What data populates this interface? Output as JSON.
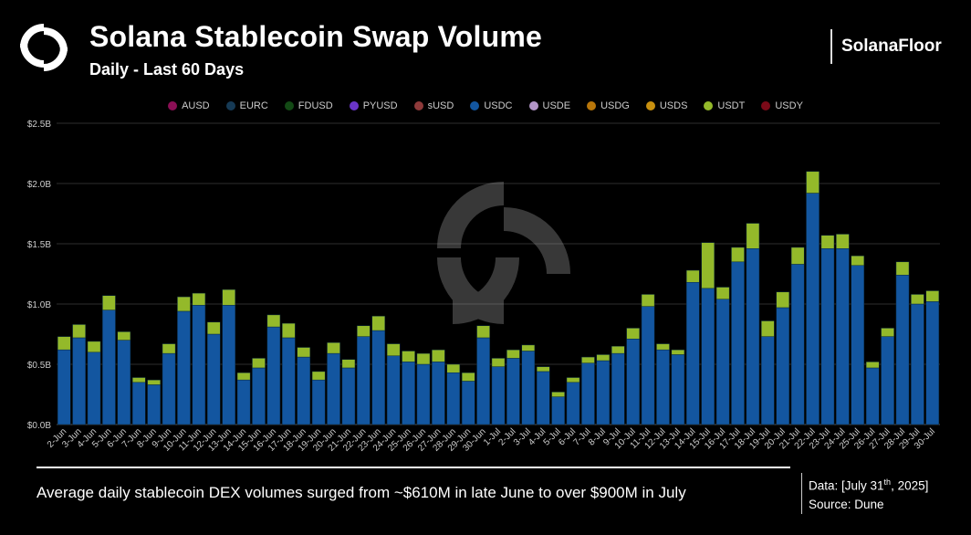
{
  "header": {
    "title": "Solana Stablecoin Swap Volume",
    "subtitle": "Daily - Last 60 Days",
    "brand": "SolanaFloor"
  },
  "footer": {
    "caption": "Average daily stablecoin DEX volumes surged from ~$610M in late June to over $900M in July",
    "data_prefix": "Data: [July 31",
    "data_sup": "th",
    "data_suffix": ", 2025]",
    "source": "Source: Dune"
  },
  "chart_data": {
    "type": "bar",
    "stacked": true,
    "title": "Solana Stablecoin Swap Volume",
    "subtitle": "Daily - Last 60 Days",
    "ylim": [
      0,
      2.5
    ],
    "yticks": [
      "$0.0B",
      "$0.5B",
      "$1.0B",
      "$1.5B",
      "$2.0B",
      "$2.5B"
    ],
    "ytick_values": [
      0,
      0.5,
      1.0,
      1.5,
      2.0,
      2.5
    ],
    "grid": true,
    "legend_position": "top",
    "legend": [
      {
        "name": "AUSD",
        "color": "#8b0f55"
      },
      {
        "name": "EURC",
        "color": "#163a55"
      },
      {
        "name": "FDUSD",
        "color": "#134a15"
      },
      {
        "name": "PYUSD",
        "color": "#6a35c8"
      },
      {
        "name": "sUSD",
        "color": "#8e3a3a"
      },
      {
        "name": "USDC",
        "color": "#1356a0"
      },
      {
        "name": "USDE",
        "color": "#b396c8"
      },
      {
        "name": "USDG",
        "color": "#b8760a"
      },
      {
        "name": "USDS",
        "color": "#c8900f"
      },
      {
        "name": "USDT",
        "color": "#94b92a"
      },
      {
        "name": "USDY",
        "color": "#7a0a18"
      }
    ],
    "categories": [
      "2-Jun",
      "3-Jun",
      "4-Jun",
      "5-Jun",
      "6-Jun",
      "7-Jun",
      "8-Jun",
      "9-Jun",
      "10-Jun",
      "11-Jun",
      "12-Jun",
      "13-Jun",
      "14-Jun",
      "15-Jun",
      "16-Jun",
      "17-Jun",
      "18-Jun",
      "19-Jun",
      "20-Jun",
      "21-Jun",
      "22-Jun",
      "23-Jun",
      "24-Jun",
      "25-Jun",
      "26-Jun",
      "27-Jun",
      "28-Jun",
      "29-Jun",
      "30-Jun",
      "1-Jul",
      "2-Jul",
      "3-Jul",
      "4-Jul",
      "5-Jul",
      "6-Jul",
      "7-Jul",
      "8-Jul",
      "9-Jul",
      "10-Jul",
      "11-Jul",
      "12-Jul",
      "13-Jul",
      "14-Jul",
      "15-Jul",
      "16-Jul",
      "17-Jul",
      "18-Jul",
      "19-Jul",
      "20-Jul",
      "21-Jul",
      "22-Jul",
      "23-Jul",
      "24-Jul",
      "25-Jul",
      "26-Jul",
      "27-Jul",
      "28-Jul",
      "29-Jul",
      "30-Jul"
    ],
    "unit": "B USD",
    "series": [
      {
        "name": "USDC",
        "color": "#1356a0",
        "values": [
          0.62,
          0.72,
          0.6,
          0.95,
          0.7,
          0.35,
          0.33,
          0.59,
          0.94,
          0.99,
          0.75,
          0.99,
          0.37,
          0.47,
          0.81,
          0.72,
          0.56,
          0.37,
          0.59,
          0.47,
          0.73,
          0.78,
          0.57,
          0.52,
          0.5,
          0.52,
          0.43,
          0.36,
          0.72,
          0.48,
          0.55,
          0.61,
          0.44,
          0.23,
          0.35,
          0.51,
          0.53,
          0.59,
          0.71,
          0.98,
          0.62,
          0.58,
          1.18,
          1.13,
          1.04,
          1.35,
          1.46,
          0.73,
          0.97,
          1.33,
          1.92,
          1.46,
          1.46,
          1.32,
          0.47,
          0.73,
          1.24,
          1.0,
          1.02
        ]
      },
      {
        "name": "USDT",
        "color": "#94b92a",
        "values": [
          0.11,
          0.11,
          0.09,
          0.12,
          0.07,
          0.04,
          0.04,
          0.08,
          0.12,
          0.1,
          0.1,
          0.13,
          0.06,
          0.08,
          0.1,
          0.12,
          0.08,
          0.07,
          0.09,
          0.07,
          0.09,
          0.12,
          0.1,
          0.09,
          0.09,
          0.1,
          0.07,
          0.07,
          0.1,
          0.07,
          0.07,
          0.05,
          0.04,
          0.04,
          0.04,
          0.05,
          0.05,
          0.06,
          0.09,
          0.1,
          0.05,
          0.04,
          0.1,
          0.38,
          0.1,
          0.12,
          0.21,
          0.13,
          0.13,
          0.14,
          0.18,
          0.11,
          0.12,
          0.08,
          0.05,
          0.07,
          0.11,
          0.08,
          0.09
        ]
      }
    ]
  }
}
